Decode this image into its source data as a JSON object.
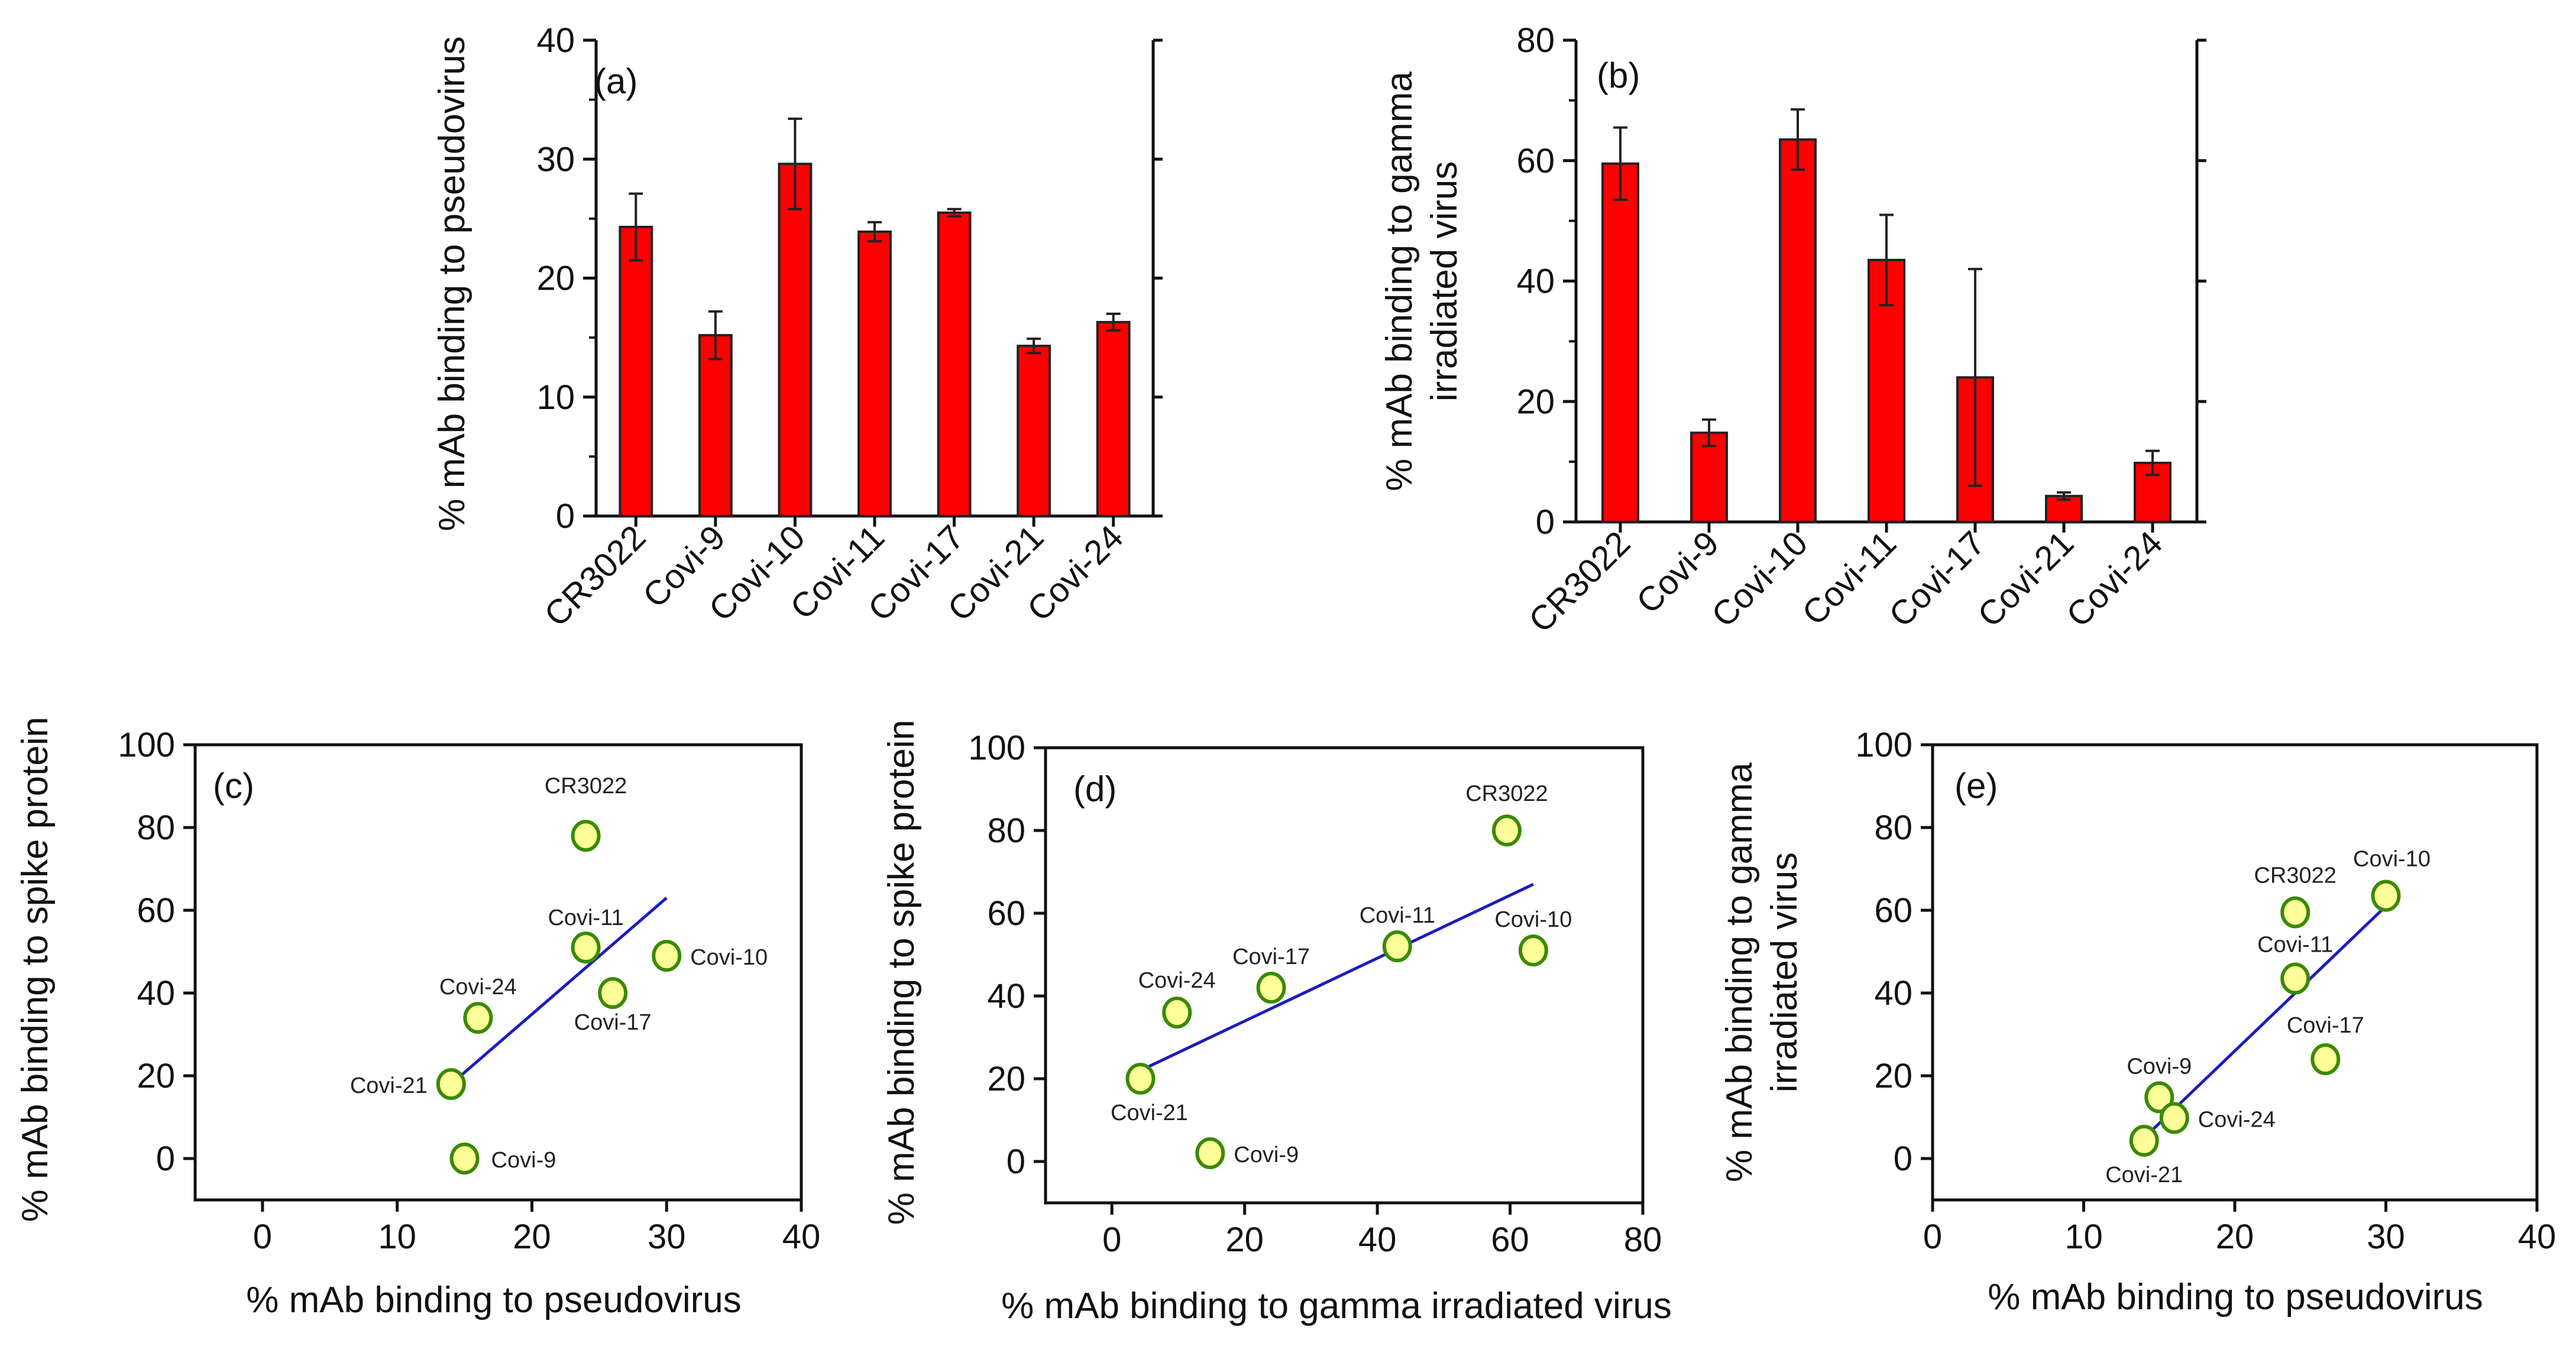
{
  "colors": {
    "bar": "#ff0000",
    "point_fill": "#ffff99",
    "point_stroke": "#3a8a00",
    "fit_line": "#1c1cbf",
    "axis": "#111111"
  },
  "chart_data": [
    {
      "id": "a",
      "type": "bar",
      "panel_label": "(a)",
      "categories": [
        "CR3022",
        "Covi-9",
        "Covi-10",
        "Covi-11",
        "Covi-17",
        "Covi-21",
        "Covi-24"
      ],
      "values": [
        24.3,
        15.2,
        29.6,
        23.9,
        25.5,
        14.3,
        16.3
      ],
      "errors": [
        2.8,
        2.0,
        3.8,
        0.8,
        0.3,
        0.6,
        0.7
      ],
      "ylabel": "% mAb binding to pseudovirus",
      "ylim": [
        0,
        40
      ],
      "yticks": [
        0,
        10,
        20,
        30,
        40
      ]
    },
    {
      "id": "b",
      "type": "bar",
      "panel_label": "(b)",
      "categories": [
        "CR3022",
        "Covi-9",
        "Covi-10",
        "Covi-11",
        "Covi-17",
        "Covi-21",
        "Covi-24"
      ],
      "values": [
        59.5,
        14.8,
        63.5,
        43.5,
        24.0,
        4.3,
        9.8
      ],
      "errors": [
        6.0,
        2.2,
        5.0,
        7.5,
        18.0,
        0.6,
        2.0
      ],
      "ylabel": [
        "% mAb binding to gamma",
        "irradiated virus"
      ],
      "ylim": [
        0,
        80
      ],
      "yticks": [
        0,
        20,
        40,
        60,
        80
      ]
    },
    {
      "id": "c",
      "type": "scatter",
      "panel_label": "(c)",
      "points": [
        {
          "name": "CR3022",
          "x": 24,
          "y": 78
        },
        {
          "name": "Covi-11",
          "x": 24,
          "y": 51
        },
        {
          "name": "Covi-10",
          "x": 30,
          "y": 49
        },
        {
          "name": "Covi-17",
          "x": 26,
          "y": 40
        },
        {
          "name": "Covi-24",
          "x": 16,
          "y": 34
        },
        {
          "name": "Covi-21",
          "x": 14,
          "y": 18
        },
        {
          "name": "Covi-9",
          "x": 15,
          "y": 0
        }
      ],
      "fit": [
        [
          14,
          18
        ],
        [
          30,
          63
        ]
      ],
      "xlabel": "% mAb binding to pseudovirus",
      "ylabel": "% mAb binding to spike protein",
      "xlim": [
        -5,
        40
      ],
      "ylim": [
        -10,
        100
      ],
      "xticks": [
        0,
        10,
        20,
        30,
        40
      ],
      "yticks": [
        0,
        20,
        40,
        60,
        80,
        100
      ]
    },
    {
      "id": "d",
      "type": "scatter",
      "panel_label": "(d)",
      "points": [
        {
          "name": "CR3022",
          "x": 59.5,
          "y": 80
        },
        {
          "name": "Covi-11",
          "x": 43,
          "y": 52
        },
        {
          "name": "Covi-10",
          "x": 63.5,
          "y": 51
        },
        {
          "name": "Covi-17",
          "x": 24,
          "y": 42
        },
        {
          "name": "Covi-24",
          "x": 9.8,
          "y": 36
        },
        {
          "name": "Covi-21",
          "x": 4.3,
          "y": 20
        },
        {
          "name": "Covi-9",
          "x": 14.8,
          "y": 2
        }
      ],
      "fit": [
        [
          4.3,
          22
        ],
        [
          63.5,
          67
        ]
      ],
      "xlabel": "% mAb binding to gamma irradiated virus",
      "ylabel": "% mAb binding to spike protein",
      "xlim": [
        -10,
        80
      ],
      "ylim": [
        -10,
        100
      ],
      "xticks": [
        0,
        20,
        40,
        60,
        80
      ],
      "yticks": [
        0,
        20,
        40,
        60,
        80,
        100
      ]
    },
    {
      "id": "e",
      "type": "scatter",
      "panel_label": "(e)",
      "points": [
        {
          "name": "CR3022",
          "x": 24,
          "y": 59.5
        },
        {
          "name": "Covi-10",
          "x": 30,
          "y": 63.5
        },
        {
          "name": "Covi-11",
          "x": 24,
          "y": 43.5
        },
        {
          "name": "Covi-17",
          "x": 26,
          "y": 24
        },
        {
          "name": "Covi-9",
          "x": 15,
          "y": 14.8
        },
        {
          "name": "Covi-24",
          "x": 16,
          "y": 9.8
        },
        {
          "name": "Covi-21",
          "x": 14,
          "y": 4.3
        }
      ],
      "fit": [
        [
          14,
          5
        ],
        [
          30,
          61
        ]
      ],
      "xlabel": "% mAb binding to pseudovirus",
      "ylabel": [
        "% mAb binding to gamma",
        "irradiated virus"
      ],
      "xlim": [
        0,
        40
      ],
      "ylim": [
        -10,
        100
      ],
      "xticks": [
        0,
        10,
        20,
        30,
        40
      ],
      "yticks": [
        0,
        20,
        40,
        60,
        80,
        100
      ]
    }
  ]
}
